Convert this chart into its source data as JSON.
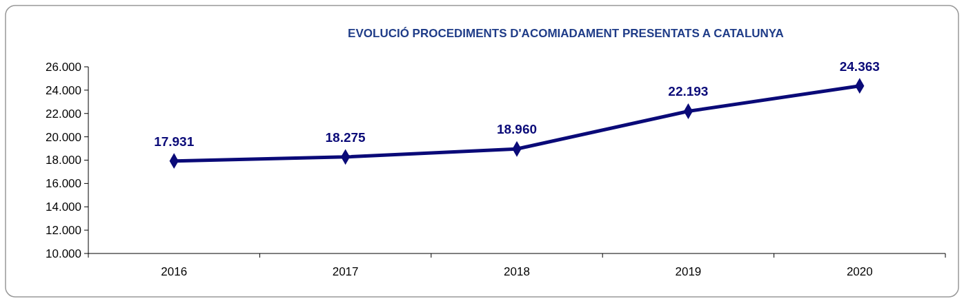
{
  "chart_data": {
    "type": "line",
    "title": "EVOLUCIÓ PROCEDIMENTS D'ACOMIADAMENT PRESENTATS A CATALUNYA",
    "categories": [
      "2016",
      "2017",
      "2018",
      "2019",
      "2020"
    ],
    "series": [
      {
        "color": "#0a0a78",
        "values": [
          17931,
          18275,
          18960,
          22193,
          24363
        ],
        "value_labels": [
          "17.931",
          "18.275",
          "18.960",
          "22.193",
          "24.363"
        ]
      }
    ],
    "ylim": [
      10000,
      26000
    ],
    "yticks": [
      {
        "value": 10000,
        "label": "10.000"
      },
      {
        "value": 12000,
        "label": "12.000"
      },
      {
        "value": 14000,
        "label": "14.000"
      },
      {
        "value": 16000,
        "label": "16.000"
      },
      {
        "value": 18000,
        "label": "18.000"
      },
      {
        "value": 20000,
        "label": "20.000"
      },
      {
        "value": 22000,
        "label": "22.000"
      },
      {
        "value": 24000,
        "label": "24.000"
      },
      {
        "value": 26000,
        "label": "26.000"
      }
    ],
    "marker": "diamond",
    "line_style": "solid"
  }
}
